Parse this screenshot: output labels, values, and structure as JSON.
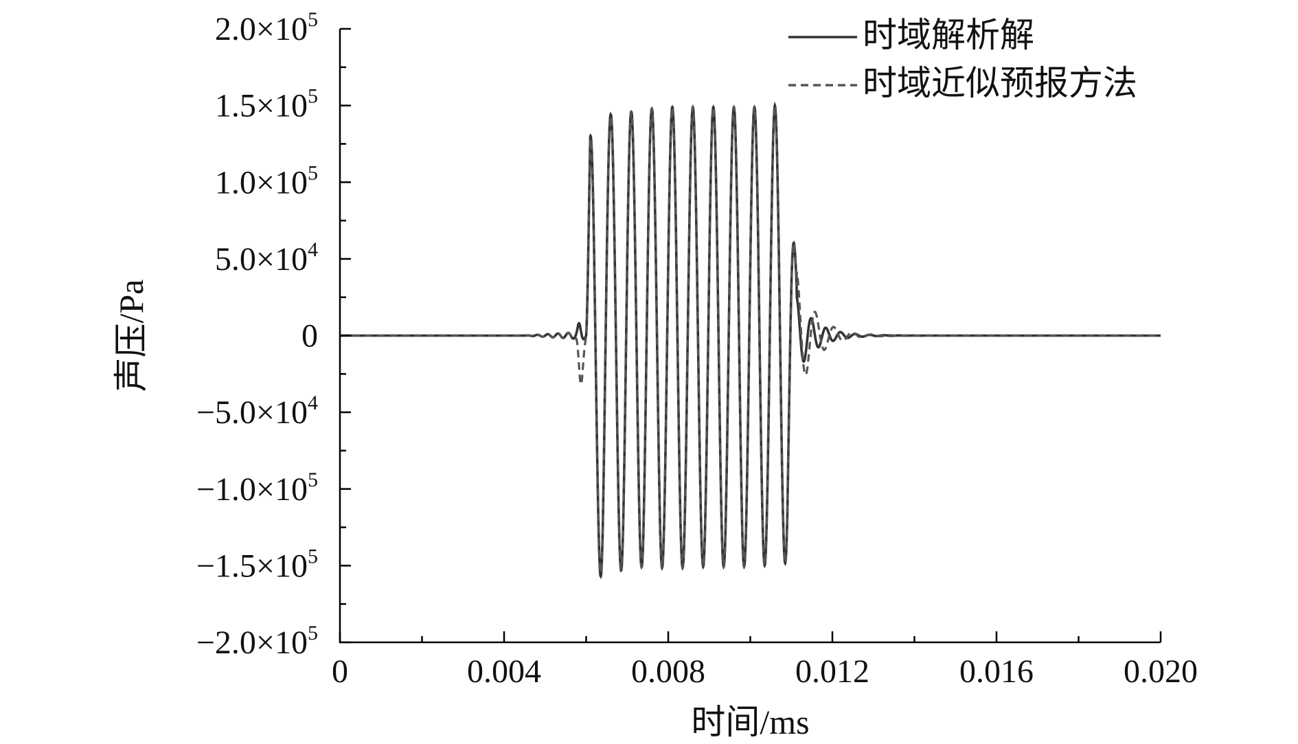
{
  "chart_data": {
    "type": "line",
    "xlabel": "时间/ms",
    "ylabel": "声压/Pa",
    "xlim": [
      0,
      0.02
    ],
    "ylim": [
      -200000,
      200000
    ],
    "x_ticks": [
      {
        "value": 0,
        "label": "0"
      },
      {
        "value": 0.004,
        "label": "0.004"
      },
      {
        "value": 0.008,
        "label": "0.008"
      },
      {
        "value": 0.012,
        "label": "0.012"
      },
      {
        "value": 0.016,
        "label": "0.016"
      },
      {
        "value": 0.02,
        "label": "0.020"
      }
    ],
    "y_ticks": [
      {
        "value": 200000,
        "mantissa": "2.0×10",
        "exp": "5"
      },
      {
        "value": 150000,
        "mantissa": "1.5×10",
        "exp": "5"
      },
      {
        "value": 100000,
        "mantissa": "1.0×10",
        "exp": "5"
      },
      {
        "value": 50000,
        "mantissa": "5.0×10",
        "exp": "4"
      },
      {
        "value": 0,
        "mantissa": "0",
        "exp": ""
      },
      {
        "value": -50000,
        "mantissa": "−5.0×10",
        "exp": "4"
      },
      {
        "value": -100000,
        "mantissa": "−1.0×10",
        "exp": "5"
      },
      {
        "value": -150000,
        "mantissa": "−1.5×10",
        "exp": "5"
      },
      {
        "value": -200000,
        "mantissa": "−2.0×10",
        "exp": "5"
      }
    ],
    "grid": false,
    "legend_position": "top-right",
    "series": [
      {
        "name": "时域解析解",
        "style": "solid",
        "color": "#333333",
        "burst_start": 0.006,
        "burst_end": 0.011,
        "frequency_hz_per_ms": 2000,
        "envelope": [
          {
            "t": 0.006,
            "amp": 0
          },
          {
            "t": 0.0061,
            "amp": 130000
          },
          {
            "t": 0.0066,
            "amp": 145000
          },
          {
            "t": 0.0071,
            "amp": 148000
          },
          {
            "t": 0.0108,
            "amp": 150000
          }
        ],
        "peaks": [
          [
            0.0061,
            130000
          ],
          [
            0.0064,
            -162000
          ],
          [
            0.0066,
            144000
          ],
          [
            0.0069,
            -155000
          ],
          [
            0.0071,
            146000
          ],
          [
            0.0074,
            -152000
          ],
          [
            0.0076,
            148000
          ],
          [
            0.0079,
            -152000
          ],
          [
            0.0081,
            149000
          ],
          [
            0.0084,
            -152000
          ],
          [
            0.0086,
            149000
          ],
          [
            0.0089,
            -151000
          ],
          [
            0.0091,
            149000
          ],
          [
            0.0094,
            -151000
          ],
          [
            0.0096,
            149000
          ],
          [
            0.0099,
            -151000
          ],
          [
            0.0101,
            149000
          ],
          [
            0.0104,
            -150000
          ],
          [
            0.0106,
            150000
          ],
          [
            0.0109,
            -148000
          ]
        ],
        "pre_ripple_amp": 6000,
        "post_ringing": [
          [
            0.01113,
            25000
          ],
          [
            0.0114,
            12000
          ],
          [
            0.0117,
            8000
          ],
          [
            0.012,
            5000
          ],
          [
            0.0123,
            2000
          ]
        ]
      },
      {
        "name": "时域近似预报方法",
        "style": "dashed",
        "color": "#555555",
        "burst_start": 0.006,
        "burst_end": 0.011,
        "peaks": [
          [
            0.0061,
            128000
          ],
          [
            0.0064,
            -160000
          ],
          [
            0.0066,
            143000
          ],
          [
            0.0069,
            -154000
          ],
          [
            0.0071,
            146000
          ],
          [
            0.0074,
            -152000
          ],
          [
            0.0076,
            148000
          ],
          [
            0.0079,
            -152000
          ],
          [
            0.0081,
            149000
          ],
          [
            0.0084,
            -152000
          ],
          [
            0.0086,
            149000
          ],
          [
            0.0089,
            -151000
          ],
          [
            0.0091,
            149000
          ],
          [
            0.0094,
            -151000
          ],
          [
            0.0096,
            149000
          ],
          [
            0.0099,
            -151000
          ],
          [
            0.0101,
            149000
          ],
          [
            0.0104,
            -150000
          ],
          [
            0.0106,
            150000
          ],
          [
            0.0109,
            -148000
          ]
        ],
        "pre_dip": [
          [
            0.00585,
            -32000
          ],
          [
            0.0059,
            -25000
          ]
        ],
        "post_ringing": [
          [
            0.01112,
            42000
          ],
          [
            0.0113,
            -8000
          ],
          [
            0.0116,
            10000
          ],
          [
            0.0118,
            -8000
          ],
          [
            0.0121,
            6000
          ],
          [
            0.0124,
            -3000
          ]
        ]
      }
    ]
  }
}
